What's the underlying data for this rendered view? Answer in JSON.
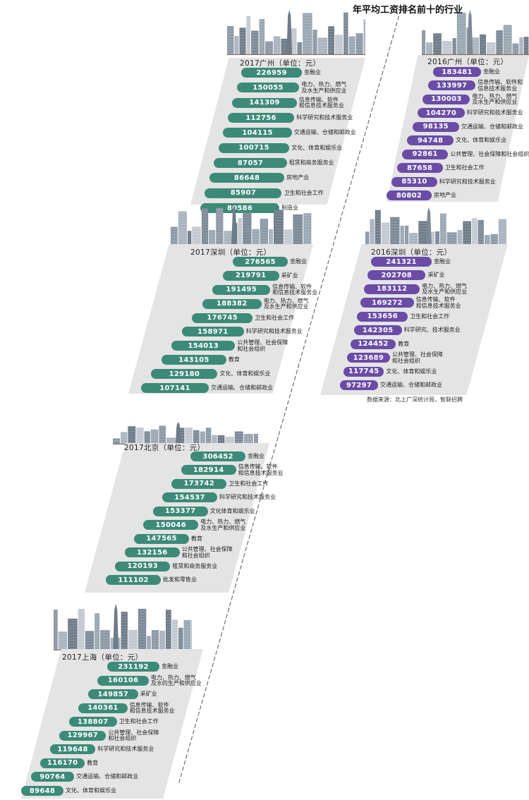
{
  "title": "年平均工资排名前十的行业",
  "source": "数据来源：北上广深统计局，智联招聘",
  "colors": {
    "teal": "#3c8a78",
    "purple": "#6a4ca6",
    "panel": "#e4e4e4"
  },
  "chart_data": [
    {
      "type": "bar",
      "title": "2017广州（单位：元）",
      "color": "#3c8a78",
      "categories": [
        "金融业",
        "电力、热力、燃气\n及水生产和供应业",
        "信息传输、软件\n和信息技术服务业",
        "科学研究和技术服务业",
        "交通运输、仓储和邮政业",
        "文化、体育和娱乐业",
        "租赁和商务服务业",
        "房地产业",
        "卫生和社会工作",
        "制造业"
      ],
      "values": [
        "226959",
        "150055",
        "141309",
        "112756",
        "104115",
        "100715",
        "87057",
        "86648",
        "85907",
        "80586"
      ]
    },
    {
      "type": "bar",
      "title": "2016广州（单位：元）",
      "color": "#6a4ca6",
      "categories": [
        "金融业",
        "信息传输、软件和\n信息技术服务业",
        "电力、热力、燃气\n及水生产和供应业",
        "科学研究和技术服务业",
        "交通运输、仓储和邮政业",
        "文化、体育和娱乐业",
        "公共管理、社会保障和社会组织",
        "卫生和社会工作",
        "科学研究和技术服务业",
        "房地产业"
      ],
      "values": [
        "183481",
        "133997",
        "130003",
        "104270",
        "98135",
        "94748",
        "92861",
        "87658",
        "85310",
        "80802"
      ]
    },
    {
      "type": "bar",
      "title": "2017深圳（单位：元）",
      "color": "#3c8a78",
      "categories": [
        "金融业",
        "采矿业",
        "信息传输、软件\n和信息技术服务业",
        "电力、热力、燃气\n及水生产和供应业",
        "卫生和社会工作",
        "科学研究和技术服务业",
        "公共管理、社会保障\n和社会组织",
        "教育",
        "文化、体育和娱乐业",
        "交通运输、仓储和邮政业"
      ],
      "values": [
        "276565",
        "219791",
        "191495",
        "188382",
        "176745",
        "158971",
        "154013",
        "143105",
        "129180",
        "107141"
      ]
    },
    {
      "type": "bar",
      "title": "2016深圳（单位：元）",
      "color": "#6a4ca6",
      "categories": [
        "金融业",
        "采矿业",
        "电力、热力、燃气\n及水生产和供应业",
        "信息传输、软件\n和信息技术服务业",
        "卫生和社会工作",
        "科学研究、技术服务业",
        "教育",
        "公共管理、社会保障\n和社会组织",
        "文化、体育和娱乐业",
        "交通运输、仓储和邮政业"
      ],
      "values": [
        "241321",
        "202708",
        "183112",
        "169272",
        "153656",
        "142305",
        "124452",
        "123689",
        "117745",
        "97297"
      ]
    },
    {
      "type": "bar",
      "title": "2017北京（单位：元）",
      "color": "#3c8a78",
      "categories": [
        "金融业",
        "信息传输、软件\n和信息技术服务业",
        "卫生和社会工作",
        "科学研究和技术服务业",
        "文化体育和娱乐业",
        "电力、热力、燃气\n及水生产和供应业",
        "教育",
        "公共管理、社会保障\n和社会组织",
        "租赁和商务服务业",
        "批发和零售业"
      ],
      "values": [
        "306452",
        "182914",
        "173742",
        "154537",
        "153377",
        "150046",
        "147565",
        "132156",
        "120193",
        "111102"
      ]
    },
    {
      "type": "bar",
      "title": "2017上海（单位：元）",
      "color": "#3c8a78",
      "categories": [
        "金融业",
        "电力、热力、燃气\n及水的生产和供应业",
        "采矿业",
        "信息传输、软件\n和信息技术服务业",
        "卫生和社会工作",
        "公共管理、社会保障\n和社会组织",
        "科学研究和技术服务业",
        "教育",
        "交通运输、仓储和邮政业",
        "文化、体育和娱乐业"
      ],
      "values": [
        "231192",
        "160106",
        "149857",
        "140361",
        "138807",
        "129967",
        "119648",
        "116170",
        "90764",
        "89648"
      ]
    }
  ]
}
